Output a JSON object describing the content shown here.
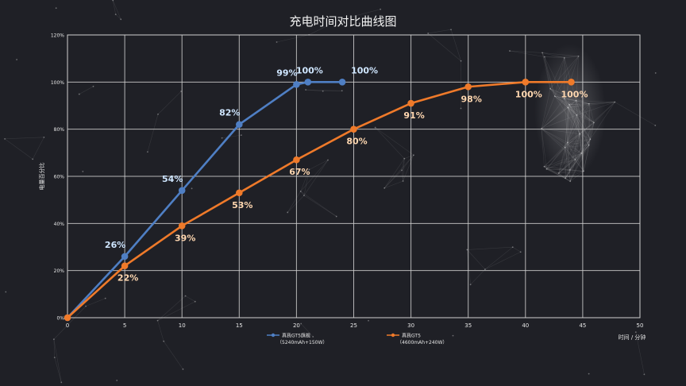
{
  "chart_data": {
    "type": "line",
    "title": "充电时间对比曲线图",
    "xlabel": "时间 / 分钟",
    "ylabel": "电量百分比",
    "xlim": [
      0,
      50
    ],
    "ylim": [
      0,
      120
    ],
    "x_ticks": [
      "0",
      "5",
      "10",
      "15",
      "20",
      "25",
      "30",
      "35",
      "40",
      "45",
      "50"
    ],
    "y_ticks": [
      "0%",
      "20%",
      "40%",
      "60%",
      "80%",
      "100%",
      "120%"
    ],
    "grid": true,
    "legend_position": "bottom",
    "series": [
      {
        "name": "真我GT5旗舰",
        "sub": "（5240mAh+150W）",
        "color": "#4f7fc4",
        "label_color": "#cfe6ff",
        "x": [
          0,
          5,
          10,
          15,
          20,
          21,
          24
        ],
        "y": [
          0,
          26,
          54,
          82,
          99,
          100,
          100
        ],
        "labels": [
          "",
          "26%",
          "54%",
          "82%",
          "99%",
          "100%",
          "100%"
        ]
      },
      {
        "name": "真我GT5",
        "sub": "（4600mAh+240W）",
        "color": "#ef7a2a",
        "label_color": "#ffd7b0",
        "x": [
          0,
          5,
          10,
          15,
          20,
          25,
          30,
          35,
          40,
          44
        ],
        "y": [
          0,
          22,
          39,
          53,
          67,
          80,
          91,
          98,
          100,
          100
        ],
        "labels": [
          "",
          "22%",
          "39%",
          "53%",
          "67%",
          "80%",
          "91%",
          "98%",
          "100%",
          "100%"
        ]
      }
    ]
  }
}
